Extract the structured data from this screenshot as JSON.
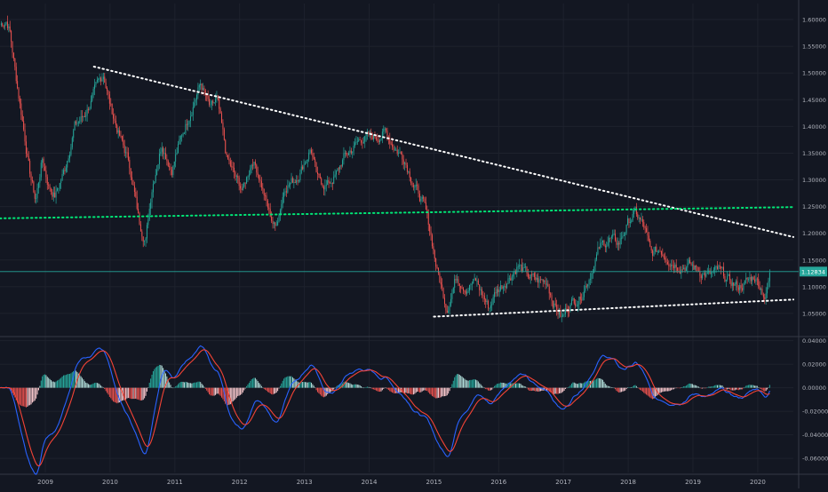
{
  "chart_data": [
    {
      "type": "candlestick",
      "panel": "price",
      "x_range": [
        2008.3,
        2020.55
      ],
      "ylim": [
        1.01,
        1.63
      ],
      "y_ticks": [
        "1.05000",
        "1.10000",
        "1.15000",
        "1.20000",
        "1.25000",
        "1.30000",
        "1.35000",
        "1.40000",
        "1.45000",
        "1.50000",
        "1.55000",
        "1.60000"
      ],
      "x_ticks": [
        "2009",
        "2010",
        "2011",
        "2012",
        "2013",
        "2014",
        "2015",
        "2016",
        "2017",
        "2018",
        "2019",
        "2020"
      ],
      "grid": true,
      "current_price": "1.12834",
      "price_path": [
        [
          2008.3,
          1.59
        ],
        [
          2008.4,
          1.6
        ],
        [
          2008.45,
          1.58
        ],
        [
          2008.55,
          1.49
        ],
        [
          2008.65,
          1.41
        ],
        [
          2008.75,
          1.32
        ],
        [
          2008.85,
          1.26
        ],
        [
          2008.95,
          1.34
        ],
        [
          2009.05,
          1.29
        ],
        [
          2009.15,
          1.27
        ],
        [
          2009.3,
          1.32
        ],
        [
          2009.45,
          1.4
        ],
        [
          2009.6,
          1.42
        ],
        [
          2009.75,
          1.46
        ],
        [
          2009.9,
          1.5
        ],
        [
          2010.0,
          1.44
        ],
        [
          2010.15,
          1.38
        ],
        [
          2010.3,
          1.33
        ],
        [
          2010.45,
          1.22
        ],
        [
          2010.55,
          1.19
        ],
        [
          2010.65,
          1.29
        ],
        [
          2010.8,
          1.37
        ],
        [
          2010.95,
          1.32
        ],
        [
          2011.1,
          1.38
        ],
        [
          2011.3,
          1.45
        ],
        [
          2011.4,
          1.48
        ],
        [
          2011.55,
          1.43
        ],
        [
          2011.65,
          1.45
        ],
        [
          2011.8,
          1.34
        ],
        [
          2011.95,
          1.3
        ],
        [
          2012.05,
          1.28
        ],
        [
          2012.2,
          1.34
        ],
        [
          2012.3,
          1.31
        ],
        [
          2012.45,
          1.24
        ],
        [
          2012.55,
          1.21
        ],
        [
          2012.7,
          1.29
        ],
        [
          2012.85,
          1.3
        ],
        [
          2012.95,
          1.32
        ],
        [
          2013.1,
          1.36
        ],
        [
          2013.2,
          1.3
        ],
        [
          2013.35,
          1.29
        ],
        [
          2013.5,
          1.31
        ],
        [
          2013.6,
          1.34
        ],
        [
          2013.75,
          1.36
        ],
        [
          2013.9,
          1.38
        ],
        [
          2014.1,
          1.38
        ],
        [
          2014.25,
          1.39
        ],
        [
          2014.4,
          1.36
        ],
        [
          2014.55,
          1.34
        ],
        [
          2014.7,
          1.29
        ],
        [
          2014.85,
          1.25
        ],
        [
          2014.95,
          1.2
        ],
        [
          2015.05,
          1.13
        ],
        [
          2015.2,
          1.06
        ],
        [
          2015.35,
          1.12
        ],
        [
          2015.5,
          1.1
        ],
        [
          2015.65,
          1.11
        ],
        [
          2015.85,
          1.06
        ],
        [
          2015.95,
          1.09
        ],
        [
          2016.1,
          1.11
        ],
        [
          2016.3,
          1.14
        ],
        [
          2016.45,
          1.12
        ],
        [
          2016.6,
          1.11
        ],
        [
          2016.75,
          1.11
        ],
        [
          2016.85,
          1.07
        ],
        [
          2016.98,
          1.04
        ],
        [
          2017.1,
          1.07
        ],
        [
          2017.25,
          1.08
        ],
        [
          2017.4,
          1.12
        ],
        [
          2017.55,
          1.17
        ],
        [
          2017.7,
          1.19
        ],
        [
          2017.85,
          1.18
        ],
        [
          2018.0,
          1.22
        ],
        [
          2018.1,
          1.24
        ],
        [
          2018.25,
          1.21
        ],
        [
          2018.35,
          1.16
        ],
        [
          2018.5,
          1.17
        ],
        [
          2018.65,
          1.15
        ],
        [
          2018.8,
          1.14
        ],
        [
          2018.95,
          1.14
        ],
        [
          2019.1,
          1.13
        ],
        [
          2019.25,
          1.12
        ],
        [
          2019.4,
          1.13
        ],
        [
          2019.55,
          1.11
        ],
        [
          2019.7,
          1.1
        ],
        [
          2019.85,
          1.11
        ],
        [
          2019.95,
          1.12
        ],
        [
          2020.05,
          1.1
        ],
        [
          2020.12,
          1.08
        ],
        [
          2020.2,
          1.13
        ]
      ],
      "annotations": [
        {
          "kind": "trendline",
          "color": "#ffffff",
          "dash": "dotted",
          "from": [
            2009.75,
            1.512
          ],
          "to": [
            2020.55,
            1.193
          ]
        },
        {
          "kind": "trendline",
          "color": "#00e676",
          "dash": "dotted",
          "from": [
            2008.3,
            1.228
          ],
          "to": [
            2020.55,
            1.249
          ]
        },
        {
          "kind": "trendline",
          "color": "#ffffff",
          "dash": "dotted",
          "from": [
            2015.0,
            1.044
          ],
          "to": [
            2020.55,
            1.076
          ]
        },
        {
          "kind": "horizontal_line",
          "color": "#26a69a",
          "y": 1.12834
        }
      ]
    },
    {
      "type": "macd",
      "panel": "indicator",
      "ylim": [
        -0.072,
        0.042
      ],
      "y_ticks": [
        "0.04000",
        "0.02000",
        "0.00000",
        "-0.02000",
        "-0.04000",
        "-0.06000"
      ],
      "grid": true,
      "macd_line_color": "#2962ff",
      "signal_line_color": "#f44336",
      "histogram_up_color": "#26a69a",
      "histogram_down_color": "#ef5350"
    }
  ],
  "colors": {
    "background": "#131722",
    "grid": "#1e222d",
    "axis_text": "#b2b5be",
    "candle_up": "#26a69a",
    "candle_down": "#ef5350",
    "price_label_bg": "#26a69a"
  }
}
